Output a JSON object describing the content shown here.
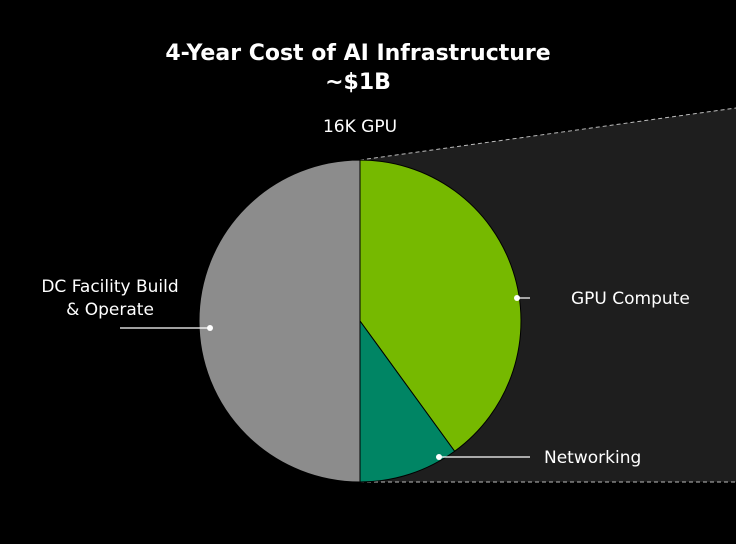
{
  "colors": {
    "background": "#000000",
    "callout_panel": "#1e1e1e",
    "leader_line": "#ffffff"
  },
  "chart_data": {
    "type": "pie",
    "title": "4-Year Cost of AI Infrastructure",
    "title_line2": "~$1B",
    "subtitle": "16K GPU",
    "start_angle_deg": 0,
    "direction": "clockwise",
    "legend": "none",
    "slices": [
      {
        "label": "GPU Compute",
        "value": 40,
        "color": "#76b900"
      },
      {
        "label": "Networking",
        "value": 10,
        "color": "#008564"
      },
      {
        "label": "DC Facility Build\n& Operate",
        "value": 50,
        "color": "#8c8c8c"
      }
    ]
  }
}
